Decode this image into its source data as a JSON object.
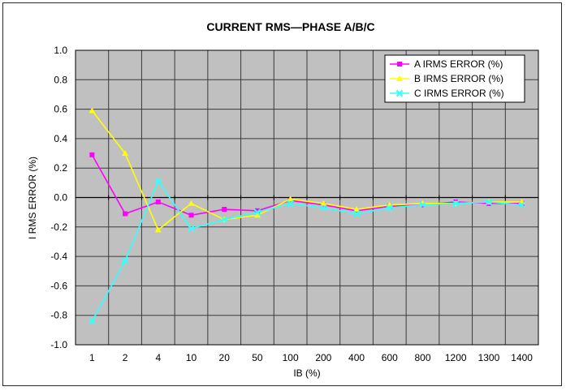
{
  "chart_data": {
    "type": "line",
    "title": "CURRENT RMS—PHASE A/B/C",
    "xlabel": "IB (%)",
    "ylabel": "I RMS ERROR (%)",
    "categories": [
      "1",
      "2",
      "4",
      "10",
      "20",
      "50",
      "100",
      "200",
      "400",
      "600",
      "800",
      "1200",
      "1300",
      "1400"
    ],
    "ylim": [
      -1.0,
      1.0
    ],
    "yticks": [
      "1.0",
      "0.8",
      "0.6",
      "0.4",
      "0.2",
      "0.0",
      "-0.2",
      "-0.4",
      "-0.6",
      "-0.8",
      "-1.0"
    ],
    "grid": true,
    "legend_position": "top-right",
    "plot_background": "#c0c0c0",
    "series": [
      {
        "name": "A IRMS ERROR (%)",
        "color": "#ff00ff",
        "marker": "square",
        "values": [
          0.29,
          -0.11,
          -0.03,
          -0.12,
          -0.08,
          -0.09,
          -0.02,
          -0.05,
          -0.09,
          -0.06,
          -0.05,
          -0.03,
          -0.04,
          -0.04
        ]
      },
      {
        "name": "B IRMS ERROR (%)",
        "color": "#ffff00",
        "marker": "triangle",
        "values": [
          0.59,
          0.3,
          -0.22,
          -0.04,
          -0.15,
          -0.12,
          -0.01,
          -0.04,
          -0.08,
          -0.05,
          -0.04,
          -0.04,
          -0.03,
          -0.03
        ]
      },
      {
        "name": "C IRMS ERROR (%)",
        "color": "#33ffff",
        "marker": "x",
        "values": [
          -0.84,
          -0.43,
          0.11,
          -0.21,
          -0.15,
          -0.1,
          -0.04,
          -0.07,
          -0.11,
          -0.07,
          -0.05,
          -0.04,
          -0.03,
          -0.05
        ]
      }
    ]
  }
}
